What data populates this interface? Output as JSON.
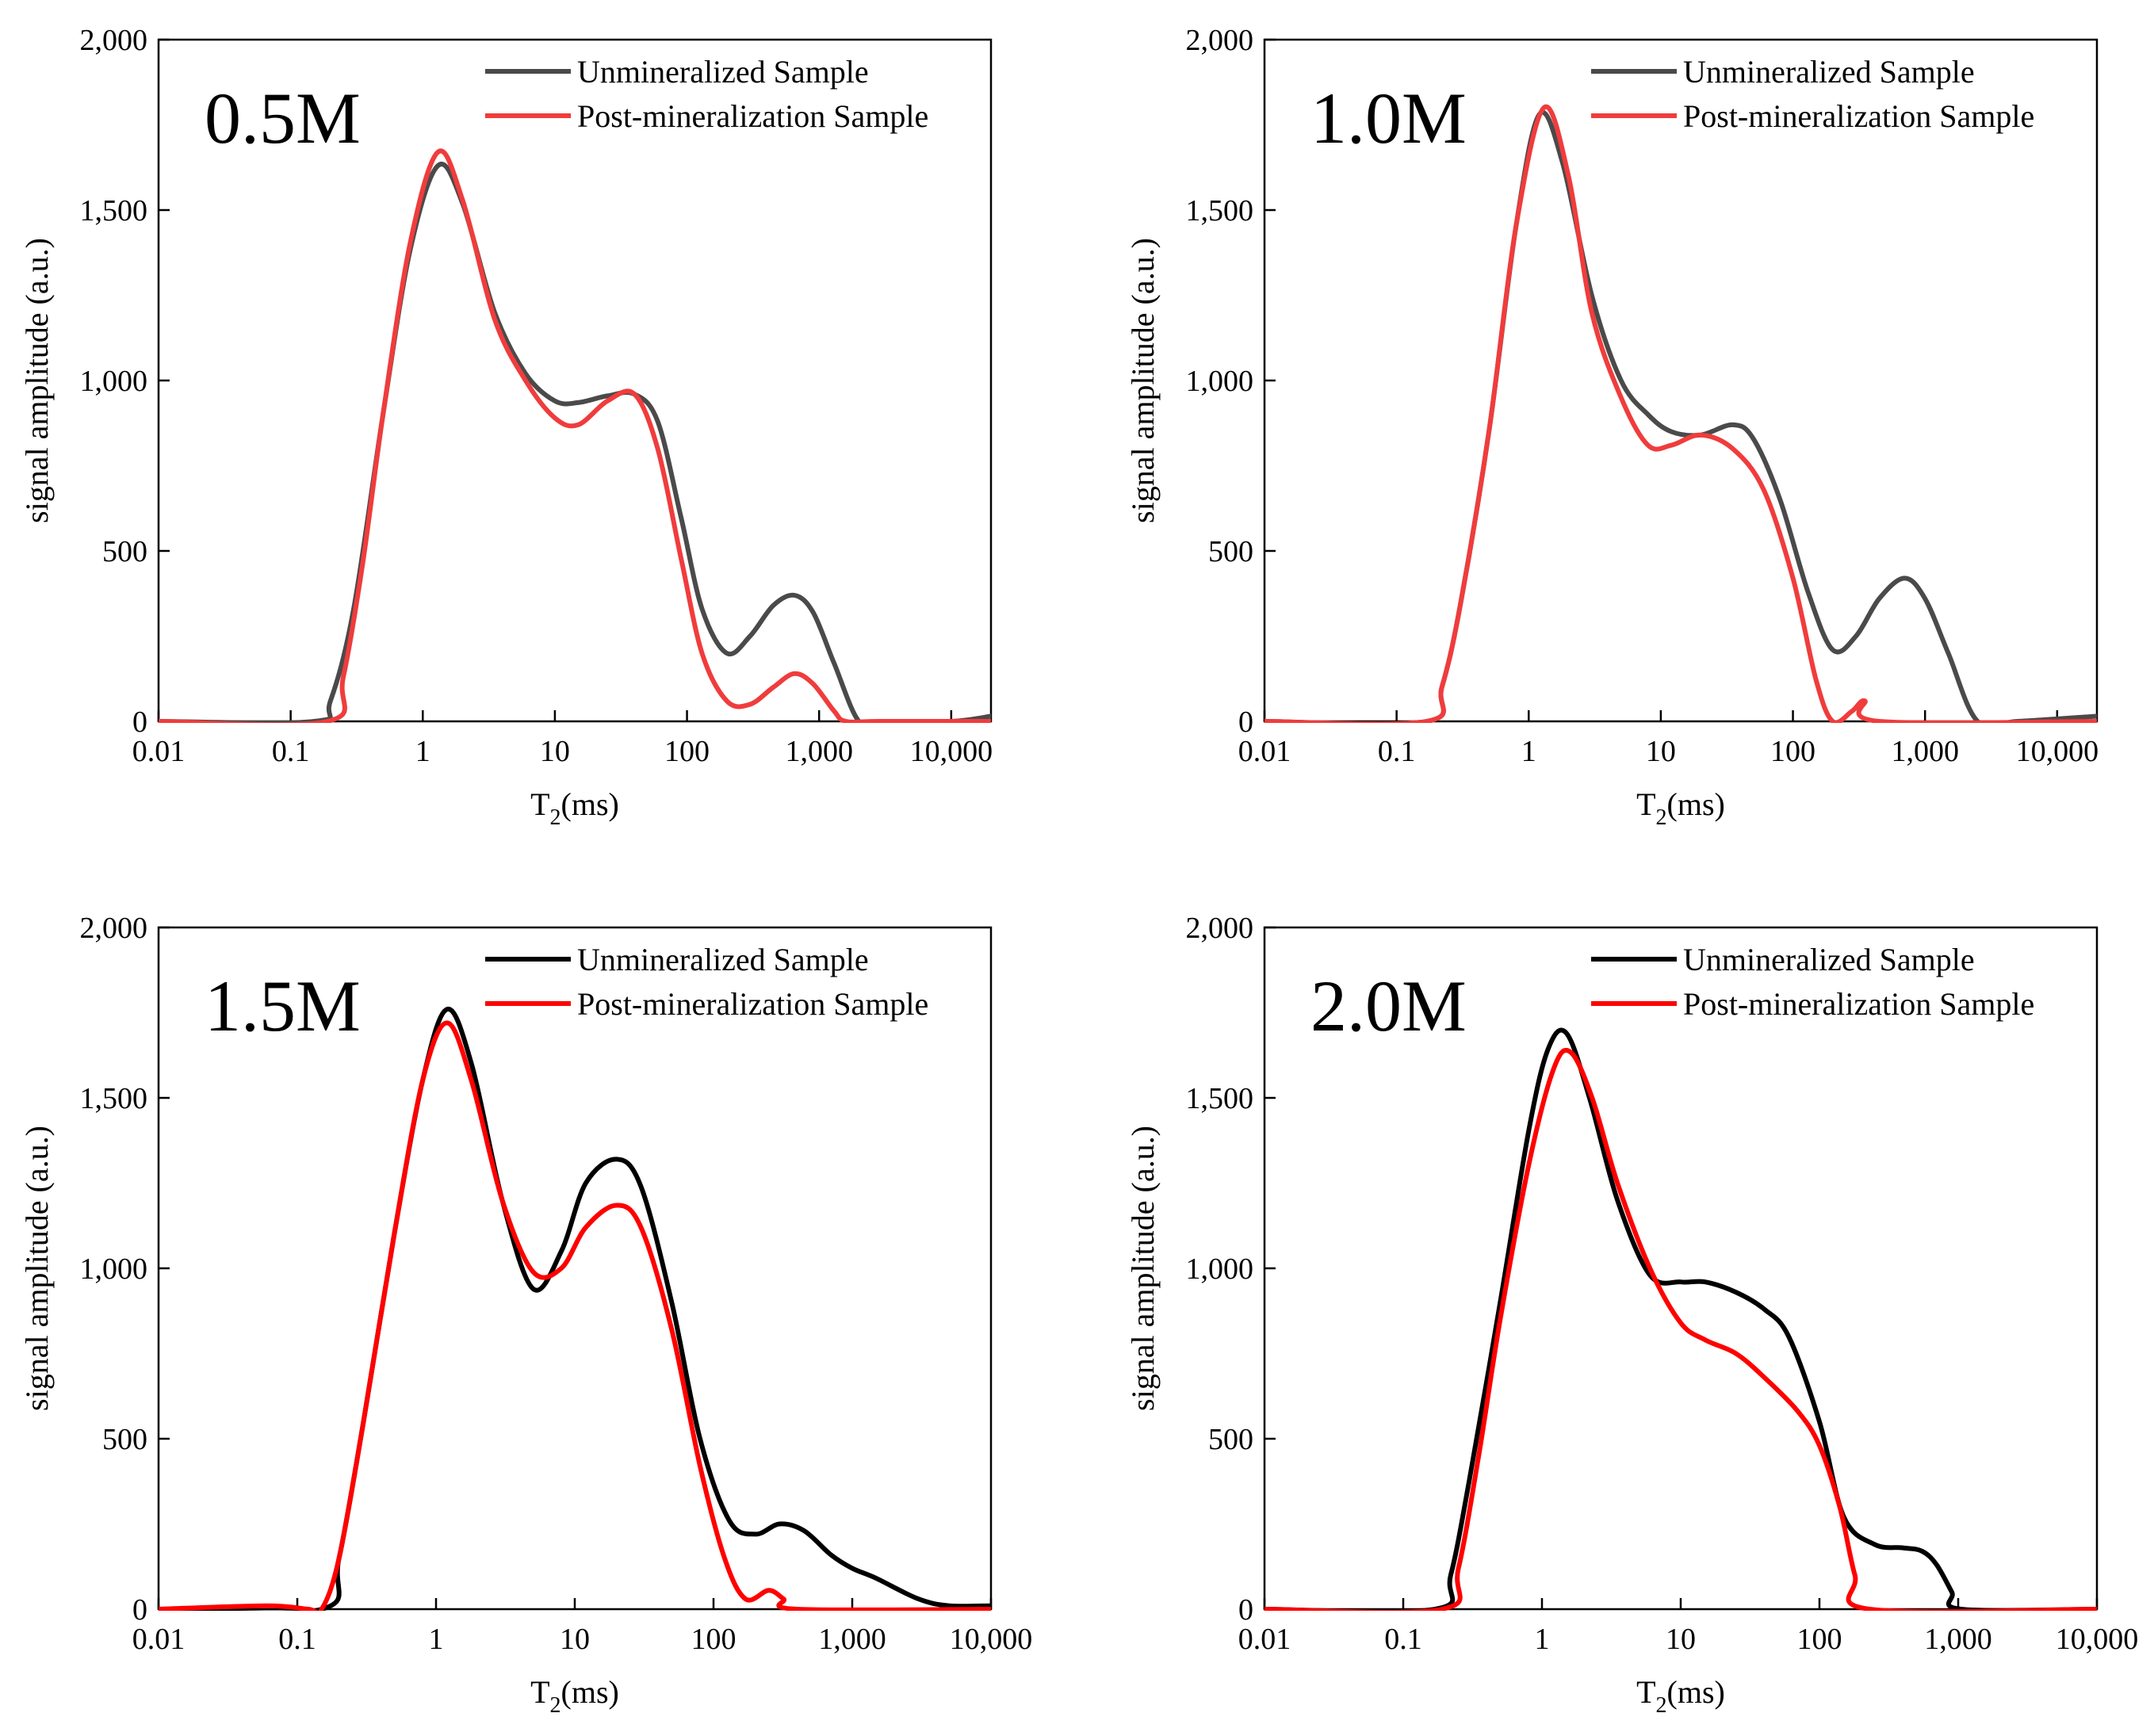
{
  "figure": {
    "description_free": true
  },
  "chart_data": [
    {
      "type": "line",
      "panel_label": "0.5M",
      "xlabel": "T",
      "xlabel_sub": "2",
      "xlabel_unit": "(ms)",
      "ylabel": "signal amplitude (a.u.)",
      "xscale": "log",
      "xlim": [
        0.01,
        20000
      ],
      "ylim": [
        0,
        2000
      ],
      "x_ticks": [
        0.01,
        0.1,
        1,
        10,
        100,
        1000,
        10000
      ],
      "x_tick_labels": [
        "0.01",
        "0.1",
        "1",
        "10",
        "100",
        "1,000",
        "10,000"
      ],
      "y_ticks": [
        0,
        500,
        1000,
        1500,
        2000
      ],
      "y_tick_labels": [
        "0",
        "500",
        "1,000",
        "1,500",
        "2,000"
      ],
      "legend_position": "top-right",
      "series": [
        {
          "name": "Unmineralized Sample",
          "color": "#4a4a4a",
          "x": [
            0.01,
            0.15,
            0.2,
            0.3,
            0.5,
            0.8,
            1.3,
            2,
            3.5,
            6,
            10,
            15,
            25,
            40,
            60,
            90,
            130,
            200,
            300,
            450,
            650,
            900,
            1300,
            2000,
            3000,
            10000,
            20000
          ],
          "y": [
            0,
            0,
            60,
            330,
            900,
            1380,
            1630,
            1520,
            1200,
            1020,
            940,
            935,
            955,
            960,
            880,
            600,
            330,
            200,
            250,
            340,
            370,
            320,
            170,
            0,
            0,
            0,
            15
          ]
        },
        {
          "name": "Post-mineralization Sample",
          "color": "#f03c3c",
          "x": [
            0.01,
            0.19,
            0.25,
            0.35,
            0.5,
            0.8,
            1.3,
            2,
            3.5,
            6,
            10,
            15,
            25,
            40,
            60,
            90,
            130,
            200,
            300,
            450,
            650,
            900,
            1300,
            1600,
            3000,
            20000
          ],
          "y": [
            0,
            0,
            130,
            460,
            900,
            1400,
            1670,
            1530,
            1180,
            1000,
            890,
            870,
            940,
            960,
            800,
            480,
            200,
            60,
            50,
            100,
            140,
            110,
            30,
            0,
            0,
            0
          ]
        }
      ]
    },
    {
      "type": "line",
      "panel_label": "1.0M",
      "xlabel": "T",
      "xlabel_sub": "2",
      "xlabel_unit": "(ms)",
      "ylabel": "signal amplitude (a.u.)",
      "xscale": "log",
      "xlim": [
        0.01,
        20000
      ],
      "ylim": [
        0,
        2000
      ],
      "x_ticks": [
        0.01,
        0.1,
        1,
        10,
        100,
        1000,
        10000
      ],
      "x_tick_labels": [
        "0.01",
        "0.1",
        "1",
        "10",
        "100",
        "1,000",
        "10,000"
      ],
      "y_ticks": [
        0,
        500,
        1000,
        1500,
        2000
      ],
      "y_tick_labels": [
        "0",
        "500",
        "1,000",
        "1,500",
        "2,000"
      ],
      "legend_position": "top-right",
      "series": [
        {
          "name": "Unmineralized Sample",
          "color": "#4a4a4a",
          "x": [
            0.01,
            0.17,
            0.22,
            0.3,
            0.5,
            0.8,
            1.2,
            1.8,
            3,
            5,
            8,
            12,
            20,
            35,
            50,
            80,
            130,
            200,
            300,
            450,
            700,
            1000,
            1500,
            2500,
            5000,
            20000
          ],
          "y": [
            0,
            0,
            100,
            330,
            850,
            1450,
            1780,
            1640,
            1250,
            1000,
            900,
            850,
            840,
            870,
            830,
            650,
            380,
            210,
            250,
            360,
            420,
            360,
            200,
            0,
            0,
            15
          ]
        },
        {
          "name": "Post-mineralization Sample",
          "color": "#f03c3c",
          "x": [
            0.01,
            0.17,
            0.22,
            0.3,
            0.5,
            0.8,
            1.3,
            2,
            3,
            5,
            8,
            12,
            20,
            35,
            60,
            100,
            150,
            200,
            280,
            350,
            450,
            20000
          ],
          "y": [
            0,
            0,
            100,
            330,
            850,
            1450,
            1800,
            1600,
            1200,
            950,
            810,
            810,
            840,
            800,
            680,
            420,
            120,
            0,
            30,
            60,
            0,
            0
          ]
        }
      ]
    },
    {
      "type": "line",
      "panel_label": "1.5M",
      "xlabel": "T",
      "xlabel_sub": "2",
      "xlabel_unit": "(ms)",
      "ylabel": "signal amplitude (a.u.)",
      "xscale": "log",
      "xlim": [
        0.01,
        10000
      ],
      "ylim": [
        0,
        2000
      ],
      "x_ticks": [
        0.01,
        0.1,
        1,
        10,
        100,
        1000,
        10000
      ],
      "x_tick_labels": [
        "0.01",
        "0.1",
        "1",
        "10",
        "100",
        "1,000",
        "10,000"
      ],
      "y_ticks": [
        0,
        500,
        1000,
        1500,
        2000
      ],
      "y_tick_labels": [
        "0",
        "500",
        "1,000",
        "1,500",
        "2,000"
      ],
      "legend_position": "top-right",
      "series": [
        {
          "name": "Unmineralized Sample",
          "color": "#000000",
          "x": [
            0.01,
            0.15,
            0.2,
            0.3,
            0.5,
            0.8,
            1.2,
            1.8,
            3,
            5,
            8,
            12,
            20,
            30,
            50,
            80,
            130,
            200,
            300,
            450,
            700,
            1000,
            1500,
            3000,
            5000,
            10000
          ],
          "y": [
            0,
            0,
            150,
            550,
            1100,
            1550,
            1760,
            1600,
            1200,
            940,
            1050,
            1250,
            1320,
            1240,
            900,
            500,
            260,
            220,
            250,
            230,
            160,
            120,
            90,
            30,
            10,
            10
          ]
        },
        {
          "name": "Post-mineralization Sample",
          "color": "#ff0000",
          "x": [
            0.01,
            0.06,
            0.12,
            0.15,
            0.2,
            0.3,
            0.5,
            0.8,
            1.2,
            1.8,
            3,
            5,
            8,
            12,
            20,
            30,
            50,
            80,
            120,
            170,
            250,
            320,
            400,
            10000
          ],
          "y": [
            0,
            10,
            0,
            0,
            150,
            550,
            1100,
            1550,
            1720,
            1550,
            1200,
            990,
            1000,
            1120,
            1185,
            1120,
            820,
            420,
            150,
            30,
            55,
            30,
            0,
            0
          ]
        }
      ]
    },
    {
      "type": "line",
      "panel_label": "2.0M",
      "xlabel": "T",
      "xlabel_sub": "2",
      "xlabel_unit": "(ms)",
      "ylabel": "signal amplitude (a.u.)",
      "xscale": "log",
      "xlim": [
        0.01,
        10000
      ],
      "ylim": [
        0,
        2000
      ],
      "x_ticks": [
        0.01,
        0.1,
        1,
        10,
        100,
        1000,
        10000
      ],
      "x_tick_labels": [
        "0.01",
        "0.1",
        "1",
        "10",
        "100",
        "1,000",
        "10,000"
      ],
      "y_ticks": [
        0,
        500,
        1000,
        1500,
        2000
      ],
      "y_tick_labels": [
        "0",
        "500",
        "1,000",
        "1,500",
        "2,000"
      ],
      "legend_position": "top-right",
      "series": [
        {
          "name": "Unmineralized Sample",
          "color": "#000000",
          "x": [
            0.01,
            0.17,
            0.22,
            0.3,
            0.5,
            0.8,
            1.1,
            1.5,
            2.2,
            3.5,
            6,
            10,
            15,
            25,
            40,
            60,
            100,
            150,
            250,
            400,
            550,
            700,
            900,
            1050,
            10000
          ],
          "y": [
            0,
            0,
            100,
            380,
            900,
            1400,
            1640,
            1690,
            1500,
            1200,
            980,
            960,
            960,
            930,
            880,
            800,
            550,
            270,
            190,
            180,
            170,
            130,
            50,
            0,
            0
          ]
        },
        {
          "name": "Post-mineralization Sample",
          "color": "#ff0000",
          "x": [
            0.01,
            0.19,
            0.25,
            0.35,
            0.5,
            0.8,
            1.2,
            1.6,
            2.3,
            3.5,
            6,
            10,
            15,
            25,
            40,
            70,
            100,
            140,
            180,
            230,
            10000
          ],
          "y": [
            0,
            0,
            120,
            450,
            850,
            1300,
            1580,
            1635,
            1500,
            1250,
            1000,
            840,
            790,
            750,
            680,
            580,
            480,
            300,
            100,
            0,
            0
          ]
        }
      ]
    }
  ]
}
